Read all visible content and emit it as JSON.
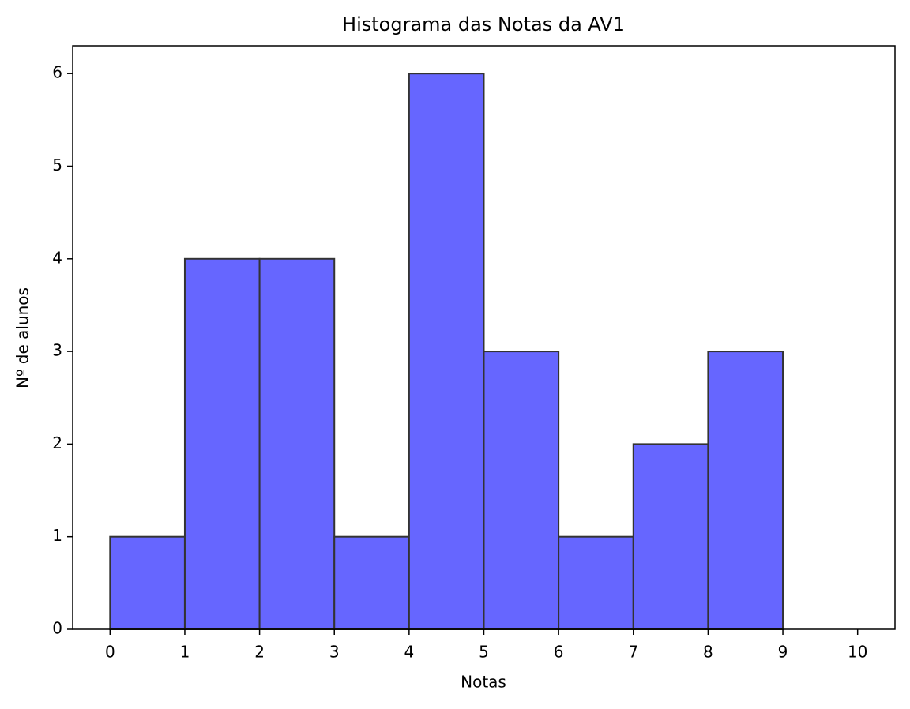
{
  "chart_data": {
    "type": "histogram",
    "title": "Histograma das Notas da AV1",
    "xlabel": "Notas",
    "ylabel": "Nº de alunos",
    "bins": [
      0,
      1,
      2,
      3,
      4,
      5,
      6,
      7,
      8,
      9,
      10
    ],
    "values": [
      1,
      4,
      4,
      1,
      6,
      3,
      1,
      2,
      3,
      0
    ],
    "color": "#6666ff",
    "edgecolor": "#333333",
    "xlim": [
      -0.5,
      10.5
    ],
    "xticks": [
      0,
      1,
      2,
      3,
      4,
      5,
      6,
      7,
      8,
      9,
      10
    ],
    "ylim": [
      0,
      6.3
    ],
    "yticks": [
      0,
      1,
      2,
      3,
      4,
      5,
      6
    ]
  }
}
